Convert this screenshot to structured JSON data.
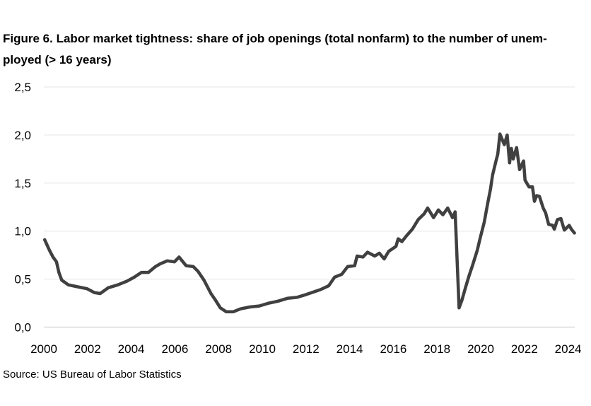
{
  "chart_data": {
    "type": "line",
    "title_lines": [
      "Figure 6. Labor market tightness: share of job openings (total nonfarm) to the number of unem-",
      "ployed (> 16 years)"
    ],
    "xlabel": "",
    "ylabel": "",
    "xlim": [
      2000,
      2024.3
    ],
    "ylim": [
      0,
      2.5
    ],
    "x_ticks": [
      "2000",
      "2002",
      "2004",
      "2006",
      "2008",
      "2010",
      "2012",
      "2014",
      "2016",
      "2018",
      "2020",
      "2022",
      "2024"
    ],
    "y_ticks": [
      "0,0",
      "0,5",
      "1,0",
      "1,5",
      "2,0",
      "2,5"
    ],
    "grid": "horizontal",
    "legend": "none",
    "line_color": "#404040",
    "grid_color": "#eeeeee",
    "series": [
      {
        "x": [
          2000.04,
          2000.26,
          2000.42,
          2000.58,
          2000.69,
          2000.82,
          2001.12,
          2001.55,
          2001.98,
          2002.31,
          2002.58,
          2002.95,
          2003.39,
          2003.82,
          2004.14,
          2004.47,
          2004.79,
          2005.11,
          2005.33,
          2005.65,
          2005.98,
          2006.19,
          2006.51,
          2006.84,
          2007.06,
          2007.33,
          2007.65,
          2007.86,
          2008.08,
          2008.35,
          2008.67,
          2009.0,
          2009.43,
          2009.86,
          2010.29,
          2010.72,
          2011.15,
          2011.59,
          2012.02,
          2012.66,
          2013.04,
          2013.31,
          2013.64,
          2013.91,
          2014.23,
          2014.34,
          2014.61,
          2014.82,
          2015.15,
          2015.36,
          2015.58,
          2015.79,
          2016.12,
          2016.22,
          2016.39,
          2016.6,
          2016.87,
          2017.14,
          2017.41,
          2017.57,
          2017.84,
          2018.06,
          2018.27,
          2018.49,
          2018.71,
          2018.83,
          2019.01,
          2019.14,
          2019.3,
          2019.46,
          2019.62,
          2019.84,
          2020.0,
          2020.16,
          2020.32,
          2020.45,
          2020.54,
          2020.7,
          2020.78,
          2020.88,
          2021.08,
          2021.21,
          2021.32,
          2021.4,
          2021.49,
          2021.64,
          2021.78,
          2021.96,
          2022.03,
          2022.21,
          2022.37,
          2022.46,
          2022.56,
          2022.69,
          2022.86,
          2022.97,
          2023.11,
          2023.29,
          2023.37,
          2023.51,
          2023.67,
          2023.83,
          2024.05,
          2024.15,
          2024.29
        ],
        "values": [
          0.91,
          0.8,
          0.73,
          0.68,
          0.57,
          0.49,
          0.44,
          0.42,
          0.4,
          0.36,
          0.35,
          0.41,
          0.44,
          0.48,
          0.52,
          0.57,
          0.57,
          0.63,
          0.66,
          0.69,
          0.68,
          0.73,
          0.64,
          0.63,
          0.58,
          0.49,
          0.35,
          0.28,
          0.2,
          0.16,
          0.16,
          0.19,
          0.21,
          0.22,
          0.25,
          0.27,
          0.3,
          0.31,
          0.34,
          0.39,
          0.43,
          0.52,
          0.55,
          0.63,
          0.64,
          0.74,
          0.73,
          0.78,
          0.74,
          0.77,
          0.71,
          0.79,
          0.84,
          0.92,
          0.89,
          0.95,
          1.02,
          1.12,
          1.18,
          1.24,
          1.14,
          1.22,
          1.17,
          1.24,
          1.14,
          1.2,
          0.2,
          0.28,
          0.41,
          0.53,
          0.64,
          0.8,
          0.95,
          1.09,
          1.29,
          1.44,
          1.58,
          1.73,
          1.8,
          2.01,
          1.9,
          2.0,
          1.71,
          1.86,
          1.75,
          1.87,
          1.64,
          1.73,
          1.53,
          1.46,
          1.46,
          1.31,
          1.37,
          1.36,
          1.24,
          1.19,
          1.07,
          1.06,
          1.02,
          1.12,
          1.13,
          1.01,
          1.06,
          1.02,
          0.98
        ]
      }
    ]
  },
  "source": "Source: US Bureau of Labor Statistics"
}
